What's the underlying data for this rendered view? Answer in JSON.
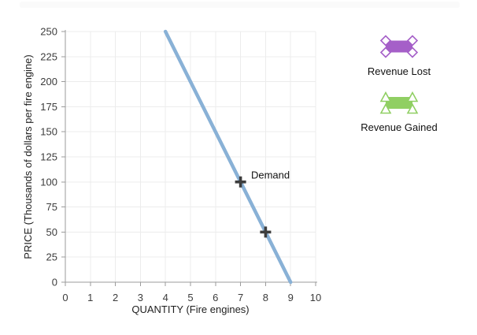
{
  "page": {
    "background": "#ffffff",
    "top_bar_color": "#fafafa"
  },
  "chart_data": {
    "type": "line",
    "title": "",
    "xlabel": "QUANTITY (Fire engines)",
    "ylabel": "PRICE (Thousands of dollars per fire engine)",
    "xlim": [
      0,
      10
    ],
    "ylim": [
      0,
      250
    ],
    "x_ticks": [
      0,
      1,
      2,
      3,
      4,
      5,
      6,
      7,
      8,
      9,
      10
    ],
    "y_ticks": [
      0,
      25,
      50,
      75,
      100,
      125,
      150,
      175,
      200,
      225,
      250
    ],
    "grid": true,
    "series": [
      {
        "name": "Demand",
        "x": [
          4,
          9
        ],
        "y": [
          250,
          0
        ],
        "color": "#89b1d6",
        "label": {
          "text": "Demand",
          "x": 7.42,
          "y": 107
        }
      }
    ],
    "markers": [
      {
        "x": 7,
        "y": 100,
        "symbol": "plus"
      },
      {
        "x": 8,
        "y": 50,
        "symbol": "plus"
      }
    ],
    "colors": {
      "axis": "#9b9b9b",
      "grid": "#ececec",
      "tick_label": "#3c3c3c",
      "marker": "#3d3d3d"
    }
  },
  "legend": {
    "items": [
      {
        "label": "Revenue Lost",
        "color": "#a55fc8",
        "symbol": "rect-with-diamond-handles"
      },
      {
        "label": "Revenue Gained",
        "color": "#90cf63",
        "symbol": "rect-with-triangle-handles"
      }
    ]
  }
}
